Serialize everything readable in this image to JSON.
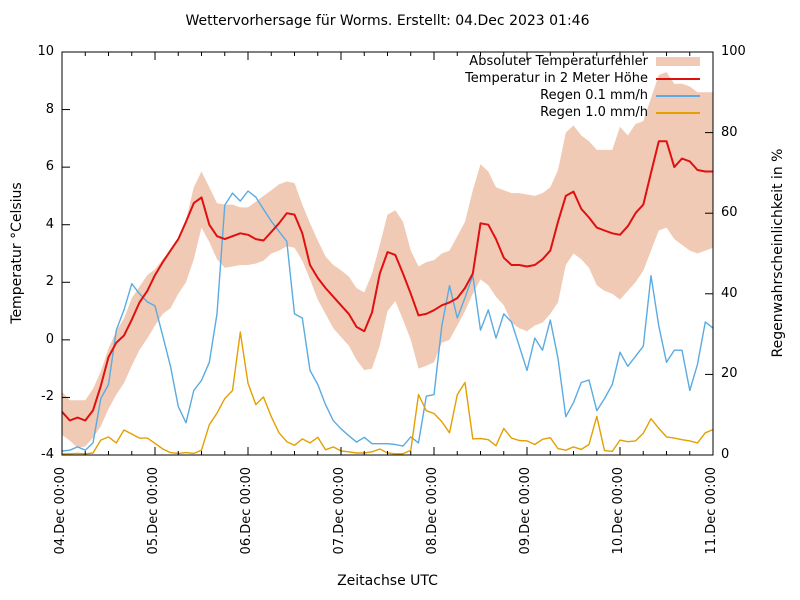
{
  "chart_data": {
    "type": "line",
    "title": "Wettervorhersage für Worms. Erstellt: 04.Dec 2023 01:46",
    "xlabel": "Zeitachse UTC",
    "ylabel_left": "Temperatur °Celsius",
    "ylabel_right": "Regenwahrscheinlichkeit in %",
    "ylim_left": [
      -4,
      10
    ],
    "ylim_right": [
      0,
      100
    ],
    "yticks_left": [
      -4,
      -2,
      0,
      2,
      4,
      6,
      8,
      10
    ],
    "yticks_right": [
      0,
      20,
      40,
      60,
      80,
      100
    ],
    "xlim_hours": [
      0,
      168
    ],
    "x_minor_step_hours": 6,
    "grid": "off",
    "legend_position": "top-right-inside",
    "x_ticks": [
      {
        "t": 0,
        "label": "04.Dec 00:00"
      },
      {
        "t": 24,
        "label": "05.Dec 00:00"
      },
      {
        "t": 48,
        "label": "06.Dec 00:00"
      },
      {
        "t": 72,
        "label": "07.Dec 00:00"
      },
      {
        "t": 96,
        "label": "08.Dec 00:00"
      },
      {
        "t": 120,
        "label": "09.Dec 00:00"
      },
      {
        "t": 144,
        "label": "10.Dec 00:00"
      },
      {
        "t": 168,
        "label": "11.Dec 00:00"
      }
    ],
    "t_hours": [
      0,
      2,
      4,
      6,
      8,
      10,
      12,
      14,
      16,
      18,
      20,
      22,
      24,
      26,
      28,
      30,
      32,
      34,
      36,
      38,
      40,
      42,
      44,
      46,
      48,
      50,
      52,
      54,
      56,
      58,
      60,
      62,
      64,
      66,
      68,
      70,
      72,
      74,
      76,
      78,
      80,
      82,
      84,
      86,
      88,
      90,
      92,
      94,
      96,
      98,
      100,
      102,
      104,
      106,
      108,
      110,
      112,
      114,
      116,
      118,
      120,
      122,
      124,
      126,
      128,
      130,
      132,
      134,
      136,
      138,
      140,
      142,
      144,
      146,
      148,
      150,
      152,
      154,
      156,
      158,
      160,
      162,
      164,
      166,
      168
    ],
    "series": [
      {
        "name": "Absoluter Temperaturfehler",
        "type": "band",
        "axis": "left",
        "color": "#f0cab5",
        "upper": [
          -1.8,
          -2.1,
          -2.1,
          -2.1,
          -1.7,
          -1.1,
          -0.3,
          0.3,
          0.75,
          1.45,
          1.85,
          2.25,
          2.45,
          2.8,
          3.1,
          3.5,
          4.15,
          5.3,
          5.85,
          5.3,
          4.75,
          4.7,
          4.7,
          4.6,
          4.6,
          4.8,
          5.0,
          5.2,
          5.4,
          5.5,
          5.45,
          4.7,
          4.05,
          3.45,
          2.9,
          2.6,
          2.42,
          2.2,
          1.8,
          1.65,
          2.3,
          3.3,
          4.35,
          4.5,
          4.1,
          3.1,
          2.55,
          2.7,
          2.77,
          3.0,
          3.1,
          3.6,
          4.1,
          5.2,
          6.1,
          5.85,
          5.3,
          5.2,
          5.1,
          5.1,
          5.05,
          5.0,
          5.1,
          5.3,
          5.9,
          7.2,
          7.45,
          7.1,
          6.9,
          6.6,
          6.6,
          6.6,
          7.4,
          7.1,
          7.5,
          7.6,
          8.4,
          9.2,
          9.3,
          8.9,
          8.9,
          8.8,
          8.6,
          8.6,
          8.6
        ],
        "lower": [
          -3.3,
          -3.5,
          -3.75,
          -3.7,
          -3.4,
          -3.0,
          -2.4,
          -1.9,
          -1.5,
          -0.9,
          -0.35,
          0.05,
          0.5,
          0.9,
          1.1,
          1.6,
          2.0,
          2.8,
          3.9,
          3.4,
          2.8,
          2.5,
          2.55,
          2.6,
          2.6,
          2.65,
          2.75,
          3.0,
          3.1,
          3.25,
          3.2,
          2.75,
          2.1,
          1.4,
          0.9,
          0.4,
          0.1,
          -0.2,
          -0.7,
          -1.05,
          -1.0,
          -0.2,
          1.0,
          1.35,
          0.7,
          0.0,
          -1.0,
          -0.9,
          -0.78,
          -0.1,
          0.0,
          0.5,
          1.0,
          1.6,
          2.1,
          1.9,
          1.5,
          1.2,
          0.6,
          0.4,
          0.3,
          0.5,
          0.6,
          0.9,
          1.3,
          2.6,
          3.0,
          2.8,
          2.5,
          1.9,
          1.7,
          1.6,
          1.4,
          1.7,
          2.0,
          2.4,
          3.1,
          3.8,
          3.9,
          3.5,
          3.3,
          3.1,
          3.0,
          3.1,
          3.2
        ]
      },
      {
        "name": "Temperatur in 2 Meter Höhe",
        "type": "line",
        "axis": "left",
        "color": "#e01010",
        "values": [
          -2.5,
          -2.8,
          -2.7,
          -2.8,
          -2.45,
          -1.6,
          -0.6,
          -0.1,
          0.15,
          0.7,
          1.3,
          1.7,
          2.25,
          2.7,
          3.1,
          3.5,
          4.1,
          4.75,
          4.95,
          4.0,
          3.6,
          3.5,
          3.6,
          3.7,
          3.65,
          3.5,
          3.45,
          3.75,
          4.05,
          4.4,
          4.35,
          3.7,
          2.6,
          2.15,
          1.8,
          1.5,
          1.2,
          0.9,
          0.45,
          0.3,
          0.95,
          2.3,
          3.05,
          2.95,
          2.3,
          1.6,
          0.85,
          0.9,
          1.03,
          1.2,
          1.3,
          1.45,
          1.8,
          2.3,
          4.05,
          4.0,
          3.5,
          2.85,
          2.6,
          2.6,
          2.55,
          2.6,
          2.8,
          3.1,
          4.1,
          5.0,
          5.15,
          4.55,
          4.25,
          3.9,
          3.8,
          3.7,
          3.65,
          3.95,
          4.4,
          4.7,
          5.8,
          6.9,
          6.9,
          6.0,
          6.3,
          6.2,
          5.9,
          5.85,
          5.85
        ]
      },
      {
        "name": "Regen 0.1 mm/h",
        "type": "line",
        "axis": "right",
        "color": "#5aabe2",
        "values": [
          1,
          1.2,
          2,
          1.2,
          3,
          14,
          17.5,
          31,
          36,
          42.5,
          40,
          38,
          37,
          29.5,
          22,
          12,
          8,
          16,
          18.5,
          23,
          35,
          62,
          65,
          63,
          65.5,
          64,
          61,
          58,
          55.5,
          53,
          35,
          34,
          21,
          17.5,
          12.5,
          8.5,
          6.5,
          4.8,
          3.2,
          4.4,
          2.8,
          2.8,
          2.8,
          2.6,
          2.2,
          4.5,
          3,
          14.6,
          15,
          32,
          42,
          34,
          39,
          44.6,
          31,
          36,
          29,
          35,
          33,
          27,
          21,
          29,
          26,
          33.5,
          24,
          9.5,
          13,
          18,
          18.6,
          11,
          14,
          17.5,
          25.5,
          22,
          24.5,
          27,
          44.5,
          32,
          23,
          26,
          26,
          16,
          22.5,
          33,
          31.5
        ]
      },
      {
        "name": "Regen 1.0 mm/h",
        "type": "line",
        "axis": "right",
        "color": "#e3a000",
        "values": [
          0.3,
          0.3,
          0.4,
          0.3,
          0.5,
          3.7,
          4.5,
          3,
          6.2,
          5.2,
          4.2,
          4.2,
          2.9,
          1.5,
          0.6,
          0.4,
          0.6,
          0.4,
          1.2,
          7.5,
          10.4,
          14,
          16,
          30.5,
          17.8,
          12.5,
          14.4,
          9.5,
          5.5,
          3.3,
          2.4,
          4,
          3,
          4.4,
          1.3,
          2,
          1,
          0.8,
          0.5,
          0.5,
          0.8,
          1.5,
          0.5,
          0.3,
          0.3,
          1.2,
          15,
          11,
          10.3,
          8.3,
          5.5,
          15,
          18,
          4,
          4.1,
          3.8,
          2.3,
          6.6,
          4.2,
          3.6,
          3.5,
          2.6,
          3.9,
          4.3,
          1.6,
          1.2,
          2,
          1.4,
          2.6,
          9.6,
          1.1,
          0.9,
          3.7,
          3.3,
          3.5,
          5.4,
          9,
          6.6,
          4.5,
          4.2,
          3.8,
          3.5,
          3.0,
          5.5,
          6.3
        ]
      }
    ]
  }
}
